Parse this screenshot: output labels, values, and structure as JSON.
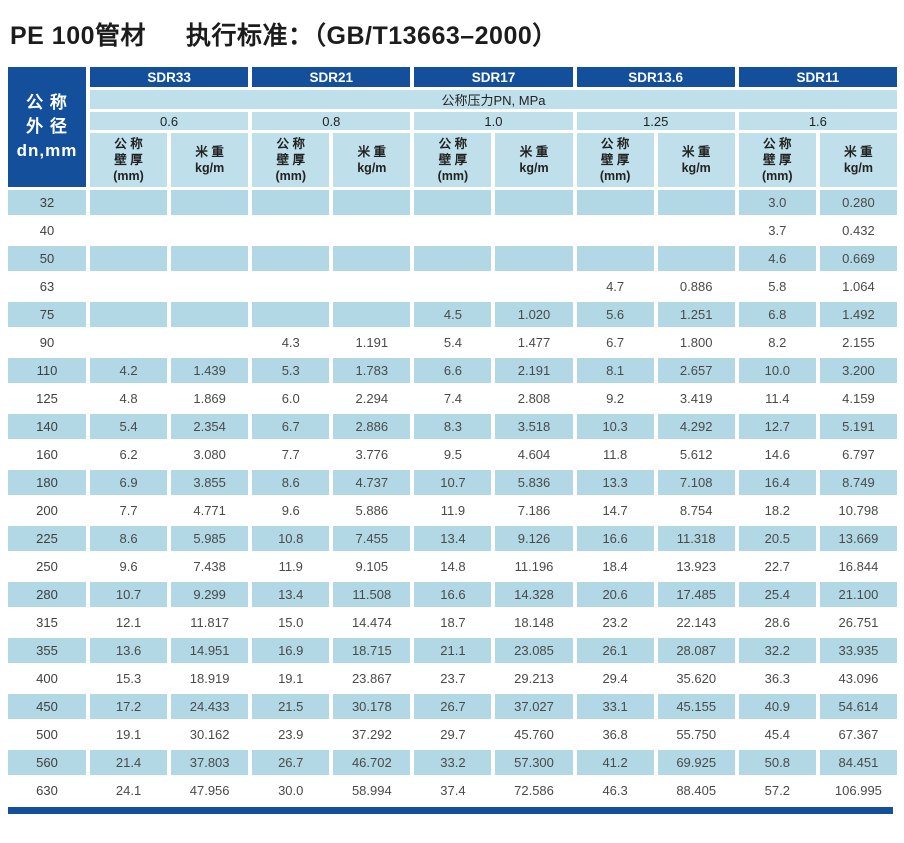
{
  "title": {
    "product": "PE 100管材",
    "standard": "执行标准：（GB/T13663–2000）"
  },
  "colors": {
    "header_dark_blue": "#134f9a",
    "header_light_blue": "#bfe0ea",
    "row_stripe_blue": "#b2d8e5",
    "body_text": "#4a4a4a"
  },
  "table": {
    "corner_header": "公 称\n外 径\ndn,mm",
    "sdr_headers": [
      "SDR33",
      "SDR21",
      "SDR17",
      "SDR13.6",
      "SDR11"
    ],
    "pressure_header": "公称压力PN, MPa",
    "pressure_values": [
      "0.6",
      "0.8",
      "1.0",
      "1.25",
      "1.6"
    ],
    "thickness_header": "公 称\n壁 厚\n(mm)",
    "weight_header": "米 重\nkg/m",
    "rows": [
      {
        "dn": "32",
        "values": [
          "",
          "",
          "",
          "",
          "",
          "",
          "",
          "",
          "3.0",
          "0.280"
        ]
      },
      {
        "dn": "40",
        "values": [
          "",
          "",
          "",
          "",
          "",
          "",
          "",
          "",
          "3.7",
          "0.432"
        ]
      },
      {
        "dn": "50",
        "values": [
          "",
          "",
          "",
          "",
          "",
          "",
          "",
          "",
          "4.6",
          "0.669"
        ]
      },
      {
        "dn": "63",
        "values": [
          "",
          "",
          "",
          "",
          "",
          "",
          "4.7",
          "0.886",
          "5.8",
          "1.064"
        ]
      },
      {
        "dn": "75",
        "values": [
          "",
          "",
          "",
          "",
          "4.5",
          "1.020",
          "5.6",
          "1.251",
          "6.8",
          "1.492"
        ]
      },
      {
        "dn": "90",
        "values": [
          "",
          "",
          "4.3",
          "1.191",
          "5.4",
          "1.477",
          "6.7",
          "1.800",
          "8.2",
          "2.155"
        ]
      },
      {
        "dn": "110",
        "values": [
          "4.2",
          "1.439",
          "5.3",
          "1.783",
          "6.6",
          "2.191",
          "8.1",
          "2.657",
          "10.0",
          "3.200"
        ]
      },
      {
        "dn": "125",
        "values": [
          "4.8",
          "1.869",
          "6.0",
          "2.294",
          "7.4",
          "2.808",
          "9.2",
          "3.419",
          "11.4",
          "4.159"
        ]
      },
      {
        "dn": "140",
        "values": [
          "5.4",
          "2.354",
          "6.7",
          "2.886",
          "8.3",
          "3.518",
          "10.3",
          "4.292",
          "12.7",
          "5.191"
        ]
      },
      {
        "dn": "160",
        "values": [
          "6.2",
          "3.080",
          "7.7",
          "3.776",
          "9.5",
          "4.604",
          "11.8",
          "5.612",
          "14.6",
          "6.797"
        ]
      },
      {
        "dn": "180",
        "values": [
          "6.9",
          "3.855",
          "8.6",
          "4.737",
          "10.7",
          "5.836",
          "13.3",
          "7.108",
          "16.4",
          "8.749"
        ]
      },
      {
        "dn": "200",
        "values": [
          "7.7",
          "4.771",
          "9.6",
          "5.886",
          "11.9",
          "7.186",
          "14.7",
          "8.754",
          "18.2",
          "10.798"
        ]
      },
      {
        "dn": "225",
        "values": [
          "8.6",
          "5.985",
          "10.8",
          "7.455",
          "13.4",
          "9.126",
          "16.6",
          "11.318",
          "20.5",
          "13.669"
        ]
      },
      {
        "dn": "250",
        "values": [
          "9.6",
          "7.438",
          "11.9",
          "9.105",
          "14.8",
          "11.196",
          "18.4",
          "13.923",
          "22.7",
          "16.844"
        ]
      },
      {
        "dn": "280",
        "values": [
          "10.7",
          "9.299",
          "13.4",
          "11.508",
          "16.6",
          "14.328",
          "20.6",
          "17.485",
          "25.4",
          "21.100"
        ]
      },
      {
        "dn": "315",
        "values": [
          "12.1",
          "11.817",
          "15.0",
          "14.474",
          "18.7",
          "18.148",
          "23.2",
          "22.143",
          "28.6",
          "26.751"
        ]
      },
      {
        "dn": "355",
        "values": [
          "13.6",
          "14.951",
          "16.9",
          "18.715",
          "21.1",
          "23.085",
          "26.1",
          "28.087",
          "32.2",
          "33.935"
        ]
      },
      {
        "dn": "400",
        "values": [
          "15.3",
          "18.919",
          "19.1",
          "23.867",
          "23.7",
          "29.213",
          "29.4",
          "35.620",
          "36.3",
          "43.096"
        ]
      },
      {
        "dn": "450",
        "values": [
          "17.2",
          "24.433",
          "21.5",
          "30.178",
          "26.7",
          "37.027",
          "33.1",
          "45.155",
          "40.9",
          "54.614"
        ]
      },
      {
        "dn": "500",
        "values": [
          "19.1",
          "30.162",
          "23.9",
          "37.292",
          "29.7",
          "45.760",
          "36.8",
          "55.750",
          "45.4",
          "67.367"
        ]
      },
      {
        "dn": "560",
        "values": [
          "21.4",
          "37.803",
          "26.7",
          "46.702",
          "33.2",
          "57.300",
          "41.2",
          "69.925",
          "50.8",
          "84.451"
        ]
      },
      {
        "dn": "630",
        "values": [
          "24.1",
          "47.956",
          "30.0",
          "58.994",
          "37.4",
          "72.586",
          "46.3",
          "88.405",
          "57.2",
          "106.995"
        ]
      }
    ]
  }
}
